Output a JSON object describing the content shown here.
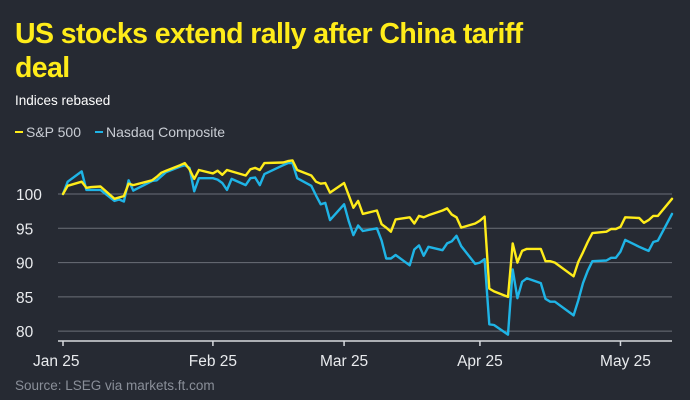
{
  "header": {
    "title": "US stocks extend rally after China tariff deal",
    "subtitle": "Indices rebased"
  },
  "source": "Source: LSEG via markets.ft.com",
  "colors": {
    "background": "#262a33",
    "sp500": "#ffec1a",
    "nasdaq": "#1fb4e6",
    "grid": "#6b6f78",
    "title": "#ffec1a"
  },
  "chart_data": {
    "type": "line",
    "title": "US stocks extend rally after China tariff deal",
    "subtitle": "Indices rebased",
    "xlabel": "",
    "ylabel": "",
    "ylim": [
      79,
      107
    ],
    "yticks": [
      80,
      85,
      90,
      95,
      100
    ],
    "xlim": [
      "2025-01-02",
      "2025-05-12"
    ],
    "xticks": [
      {
        "label": "Jan 25",
        "date": "2025-01-02"
      },
      {
        "label": "Feb 25",
        "date": "2025-02-03"
      },
      {
        "label": "Mar 25",
        "date": "2025-03-03"
      },
      {
        "label": "Apr 25",
        "date": "2025-04-01"
      },
      {
        "label": "May 25",
        "date": "2025-05-01"
      }
    ],
    "legend": "top-left",
    "grid": "horizontal",
    "series": [
      {
        "name": "S&P 500",
        "color": "#ffec1a",
        "points": [
          [
            "2025-01-02",
            100.0
          ],
          [
            "2025-01-03",
            101.2
          ],
          [
            "2025-01-06",
            101.8
          ],
          [
            "2025-01-07",
            100.9
          ],
          [
            "2025-01-08",
            101.0
          ],
          [
            "2025-01-10",
            101.1
          ],
          [
            "2025-01-13",
            99.3
          ],
          [
            "2025-01-14",
            99.5
          ],
          [
            "2025-01-15",
            99.7
          ],
          [
            "2025-01-16",
            101.5
          ],
          [
            "2025-01-17",
            101.3
          ],
          [
            "2025-01-21",
            102.0
          ],
          [
            "2025-01-22",
            102.5
          ],
          [
            "2025-01-23",
            103.1
          ],
          [
            "2025-01-24",
            103.4
          ],
          [
            "2025-01-27",
            104.2
          ],
          [
            "2025-01-28",
            104.5
          ],
          [
            "2025-01-29",
            103.6
          ],
          [
            "2025-01-30",
            102.2
          ],
          [
            "2025-01-31",
            103.5
          ],
          [
            "2025-02-03",
            103.0
          ],
          [
            "2025-02-04",
            103.4
          ],
          [
            "2025-02-05",
            102.8
          ],
          [
            "2025-02-06",
            103.5
          ],
          [
            "2025-02-07",
            103.3
          ],
          [
            "2025-02-10",
            102.7
          ],
          [
            "2025-02-11",
            103.6
          ],
          [
            "2025-02-12",
            103.8
          ],
          [
            "2025-02-13",
            103.5
          ],
          [
            "2025-02-14",
            104.5
          ],
          [
            "2025-02-18",
            104.6
          ],
          [
            "2025-02-19",
            104.8
          ],
          [
            "2025-02-20",
            104.9
          ],
          [
            "2025-02-21",
            103.5
          ],
          [
            "2025-02-24",
            102.7
          ],
          [
            "2025-02-25",
            101.8
          ],
          [
            "2025-02-26",
            101.5
          ],
          [
            "2025-02-27",
            101.6
          ],
          [
            "2025-02-28",
            100.2
          ],
          [
            "2025-03-03",
            101.6
          ],
          [
            "2025-03-04",
            99.8
          ],
          [
            "2025-03-05",
            98.0
          ],
          [
            "2025-03-06",
            99.0
          ],
          [
            "2025-03-07",
            97.1
          ],
          [
            "2025-03-10",
            97.6
          ],
          [
            "2025-03-11",
            95.6
          ],
          [
            "2025-03-12",
            95.1
          ],
          [
            "2025-03-13",
            94.5
          ],
          [
            "2025-03-14",
            96.3
          ],
          [
            "2025-03-17",
            96.6
          ],
          [
            "2025-03-18",
            95.7
          ],
          [
            "2025-03-19",
            96.8
          ],
          [
            "2025-03-20",
            96.6
          ],
          [
            "2025-03-21",
            96.9
          ],
          [
            "2025-03-24",
            97.6
          ],
          [
            "2025-03-25",
            97.9
          ],
          [
            "2025-03-26",
            97.0
          ],
          [
            "2025-03-27",
            96.6
          ],
          [
            "2025-03-28",
            95.1
          ],
          [
            "2025-03-31",
            95.7
          ],
          [
            "2025-04-01",
            96.1
          ],
          [
            "2025-04-02",
            96.7
          ],
          [
            "2025-04-03",
            86.2
          ],
          [
            "2025-04-04",
            85.8
          ],
          [
            "2025-04-07",
            85.0
          ],
          [
            "2025-04-08",
            92.8
          ],
          [
            "2025-04-09",
            90.0
          ],
          [
            "2025-04-10",
            91.7
          ],
          [
            "2025-04-11",
            92.0
          ],
          [
            "2025-04-14",
            92.0
          ],
          [
            "2025-04-15",
            90.2
          ],
          [
            "2025-04-16",
            90.2
          ],
          [
            "2025-04-17",
            90.0
          ],
          [
            "2025-04-21",
            88.0
          ],
          [
            "2025-04-22",
            90.1
          ],
          [
            "2025-04-23",
            91.5
          ],
          [
            "2025-04-24",
            93.0
          ],
          [
            "2025-04-25",
            94.3
          ],
          [
            "2025-04-28",
            94.5
          ],
          [
            "2025-04-29",
            94.9
          ],
          [
            "2025-04-30",
            94.9
          ],
          [
            "2025-05-01",
            95.2
          ],
          [
            "2025-05-02",
            96.6
          ],
          [
            "2025-05-05",
            96.5
          ],
          [
            "2025-05-06",
            95.8
          ],
          [
            "2025-05-07",
            96.2
          ],
          [
            "2025-05-08",
            96.8
          ],
          [
            "2025-05-09",
            96.8
          ],
          [
            "2025-05-12",
            99.3
          ]
        ]
      },
      {
        "name": "Nasdaq Composite",
        "color": "#1fb4e6",
        "points": [
          [
            "2025-01-02",
            100.0
          ],
          [
            "2025-01-03",
            101.8
          ],
          [
            "2025-01-06",
            103.3
          ],
          [
            "2025-01-07",
            100.6
          ],
          [
            "2025-01-08",
            100.6
          ],
          [
            "2025-01-10",
            100.6
          ],
          [
            "2025-01-13",
            99.0
          ],
          [
            "2025-01-14",
            99.2
          ],
          [
            "2025-01-15",
            98.9
          ],
          [
            "2025-01-16",
            102.0
          ],
          [
            "2025-01-17",
            100.5
          ],
          [
            "2025-01-21",
            101.9
          ],
          [
            "2025-01-22",
            102.0
          ],
          [
            "2025-01-23",
            102.6
          ],
          [
            "2025-01-24",
            103.2
          ],
          [
            "2025-01-27",
            104.0
          ],
          [
            "2025-01-28",
            104.2
          ],
          [
            "2025-01-29",
            103.8
          ],
          [
            "2025-01-30",
            100.4
          ],
          [
            "2025-01-31",
            102.3
          ],
          [
            "2025-02-03",
            102.3
          ],
          [
            "2025-02-04",
            102.1
          ],
          [
            "2025-02-05",
            101.6
          ],
          [
            "2025-02-06",
            100.6
          ],
          [
            "2025-02-07",
            102.2
          ],
          [
            "2025-02-10",
            101.3
          ],
          [
            "2025-02-11",
            102.3
          ],
          [
            "2025-02-12",
            102.4
          ],
          [
            "2025-02-13",
            101.3
          ],
          [
            "2025-02-14",
            102.9
          ],
          [
            "2025-02-18",
            104.2
          ],
          [
            "2025-02-19",
            104.5
          ],
          [
            "2025-02-20",
            104.5
          ],
          [
            "2025-02-21",
            102.3
          ],
          [
            "2025-02-24",
            101.2
          ],
          [
            "2025-02-25",
            99.8
          ],
          [
            "2025-02-26",
            98.5
          ],
          [
            "2025-02-27",
            98.7
          ],
          [
            "2025-02-28",
            96.2
          ],
          [
            "2025-03-03",
            98.5
          ],
          [
            "2025-03-04",
            96.0
          ],
          [
            "2025-03-05",
            94.0
          ],
          [
            "2025-03-06",
            95.4
          ],
          [
            "2025-03-07",
            94.6
          ],
          [
            "2025-03-10",
            95.0
          ],
          [
            "2025-03-11",
            93.2
          ],
          [
            "2025-03-12",
            90.6
          ],
          [
            "2025-03-13",
            90.6
          ],
          [
            "2025-03-14",
            91.1
          ],
          [
            "2025-03-17",
            89.6
          ],
          [
            "2025-03-18",
            91.9
          ],
          [
            "2025-03-19",
            92.5
          ],
          [
            "2025-03-20",
            91.0
          ],
          [
            "2025-03-21",
            92.3
          ],
          [
            "2025-03-24",
            91.8
          ],
          [
            "2025-03-25",
            92.8
          ],
          [
            "2025-03-26",
            93.1
          ],
          [
            "2025-03-27",
            93.9
          ],
          [
            "2025-03-28",
            92.4
          ],
          [
            "2025-03-31",
            89.8
          ],
          [
            "2025-04-01",
            90.0
          ],
          [
            "2025-04-02",
            90.5
          ],
          [
            "2025-04-03",
            81.0
          ],
          [
            "2025-04-04",
            80.9
          ],
          [
            "2025-04-07",
            79.5
          ],
          [
            "2025-04-08",
            89.0
          ],
          [
            "2025-04-09",
            84.8
          ],
          [
            "2025-04-10",
            87.2
          ],
          [
            "2025-04-11",
            87.7
          ],
          [
            "2025-04-14",
            87.0
          ],
          [
            "2025-04-15",
            84.7
          ],
          [
            "2025-04-16",
            84.3
          ],
          [
            "2025-04-17",
            84.3
          ],
          [
            "2025-04-21",
            82.3
          ],
          [
            "2025-04-22",
            84.5
          ],
          [
            "2025-04-23",
            87.0
          ],
          [
            "2025-04-24",
            88.8
          ],
          [
            "2025-04-25",
            90.2
          ],
          [
            "2025-04-28",
            90.3
          ],
          [
            "2025-04-29",
            90.7
          ],
          [
            "2025-04-30",
            90.7
          ],
          [
            "2025-05-01",
            91.6
          ],
          [
            "2025-05-02",
            93.3
          ],
          [
            "2025-05-05",
            92.3
          ],
          [
            "2025-05-06",
            92.0
          ],
          [
            "2025-05-07",
            91.7
          ],
          [
            "2025-05-08",
            93.0
          ],
          [
            "2025-05-09",
            93.2
          ],
          [
            "2025-05-12",
            97.1
          ]
        ]
      }
    ]
  }
}
